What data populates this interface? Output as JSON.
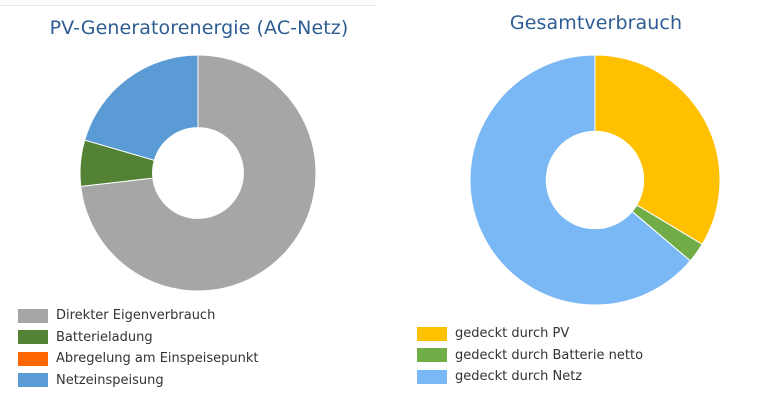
{
  "chart_data": [
    {
      "type": "pie",
      "title": "PV-Generatorenergie (AC-Netz)",
      "donut": true,
      "categories": [
        "Direkter Eigenverbrauch",
        "Batterieladung",
        "Abregelung am Einspeisepunkt",
        "Netzeinspeisung"
      ],
      "values": [
        73.2,
        6.3,
        0.0,
        20.5
      ],
      "unit": "%",
      "colors": [
        "#a6a6a6",
        "#548235",
        "#ff6600",
        "#5b9bd5"
      ],
      "legend": "bottom-left"
    },
    {
      "type": "pie",
      "title": "Gesamtverbrauch",
      "donut": true,
      "categories": [
        "gedeckt durch PV",
        "gedeckt durch Batterie netto",
        "gedeckt durch Netz"
      ],
      "values": [
        33.6,
        2.6,
        63.8
      ],
      "unit": "%",
      "colors": [
        "#ffc000",
        "#70ad47",
        "#7ab8f5"
      ],
      "legend": "bottom-left"
    }
  ]
}
